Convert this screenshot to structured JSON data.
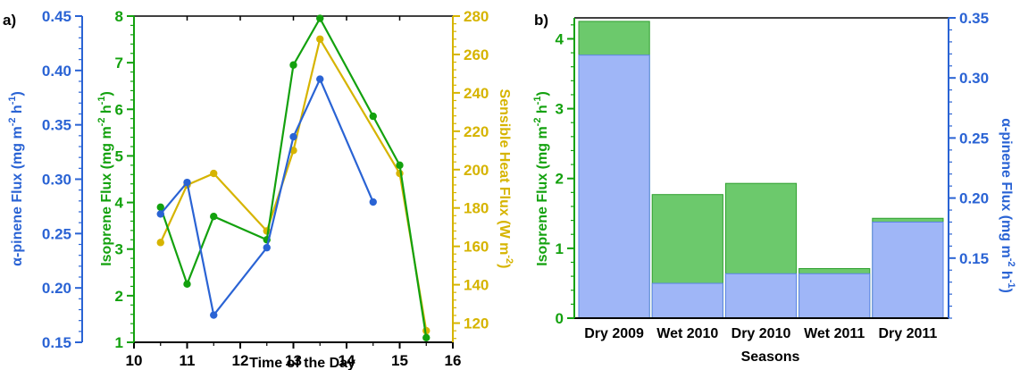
{
  "chart_data": [
    {
      "type": "line",
      "panel_label": "a)",
      "xlabel": "Time of the Day",
      "xlim": [
        10,
        16
      ],
      "xticks": [
        10,
        11,
        12,
        13,
        14,
        15,
        16
      ],
      "axes": [
        {
          "id": "alpha",
          "label": "α-pinene Flux (mg m⁻² h⁻¹)",
          "label_parts": [
            "α-pinene Flux (mg m",
            "-2",
            " h",
            "-1",
            ")"
          ],
          "lim": [
            0.15,
            0.45
          ],
          "ticks": [
            "0.15",
            "0.20",
            "0.25",
            "0.30",
            "0.35",
            "0.40",
            "0.45"
          ],
          "color": "#2a63d4"
        },
        {
          "id": "isoprene",
          "label": "Isoprene Flux (mg m⁻² h⁻¹)",
          "label_parts": [
            "Isoprene Flux (mg m",
            "-2",
            " h",
            "-1",
            ")"
          ],
          "lim": [
            1,
            8
          ],
          "ticks": [
            "1",
            "2",
            "3",
            "4",
            "5",
            "6",
            "7",
            "8"
          ],
          "color": "#13a10e"
        },
        {
          "id": "heat",
          "label": "Sensible Heat Flux (W m⁻²)",
          "label_parts": [
            "Sensible Heat Flux (W m",
            "-2",
            ")"
          ],
          "lim": [
            110,
            280
          ],
          "ticks": [
            "120",
            "140",
            "160",
            "180",
            "200",
            "220",
            "240",
            "260",
            "280"
          ],
          "color": "#d6b400"
        }
      ],
      "series": [
        {
          "axis": "alpha",
          "x": [
            10.5,
            11,
            11.5,
            12.5,
            13,
            13.5,
            14.5
          ],
          "y": [
            0.268,
            0.297,
            0.175,
            0.237,
            0.339,
            0.392,
            0.279
          ]
        },
        {
          "axis": "isoprene",
          "x": [
            10.5,
            11,
            11.5,
            12.5,
            13,
            13.5,
            14.5,
            15,
            15.5
          ],
          "y": [
            3.9,
            2.25,
            3.7,
            3.2,
            6.95,
            7.95,
            5.85,
            4.8,
            1.1
          ]
        },
        {
          "axis": "heat",
          "x": [
            10.5,
            11,
            11.5,
            12.5,
            13,
            13.5,
            15,
            15.5
          ],
          "y": [
            162,
            192,
            198,
            168,
            210,
            268,
            198,
            116
          ]
        }
      ]
    },
    {
      "type": "bar",
      "panel_label": "b)",
      "xlabel": "Seasons",
      "categories": [
        "Dry 2009",
        "Wet 2010",
        "Dry 2010",
        "Wet 2011",
        "Dry 2011"
      ],
      "left_axis": {
        "label": "Isoprene Flux (mg m⁻² h⁻¹)",
        "label_parts": [
          "Isoprene Flux (mg m",
          "-2",
          " h",
          "-1",
          ")"
        ],
        "lim": [
          0,
          4.3
        ],
        "ticks": [
          "0",
          "1",
          "2",
          "3",
          "4"
        ],
        "color": "#13a10e"
      },
      "right_axis": {
        "label": "α-pinene Flux (mg m⁻² h⁻¹)",
        "label_parts": [
          "α-pinene Flux (mg m",
          "-2",
          " h",
          "-1",
          ")"
        ],
        "lim": [
          0.1,
          0.35
        ],
        "ticks": [
          "0.15",
          "0.20",
          "0.25",
          "0.30",
          "0.35"
        ],
        "color": "#2a63d4"
      },
      "series": [
        {
          "axis": "left",
          "color": "#6cc96c",
          "values": [
            4.25,
            1.77,
            1.93,
            0.71,
            1.43
          ]
        },
        {
          "axis": "right",
          "color": "#9fb6f7",
          "values": [
            0.319,
            0.129,
            0.137,
            0.137,
            0.18
          ]
        }
      ]
    }
  ]
}
